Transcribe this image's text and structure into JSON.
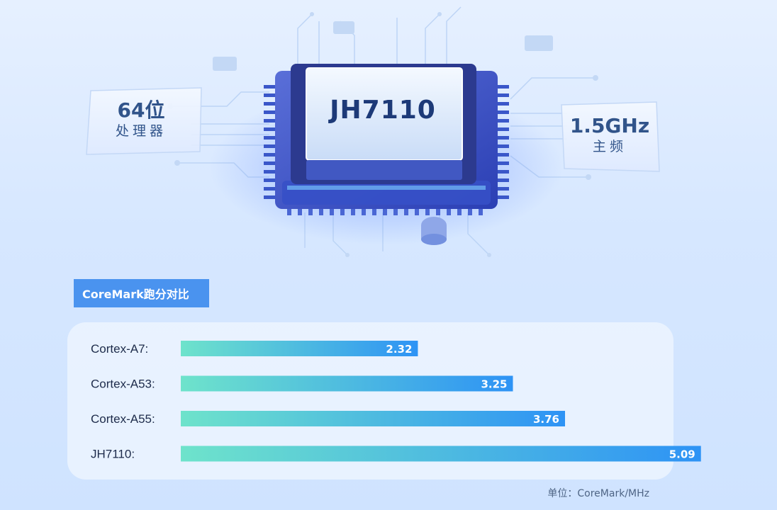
{
  "hero": {
    "chip_name": "JH7110",
    "left_spec": {
      "value": "64位",
      "label": "处理器"
    },
    "right_spec": {
      "value": "1.5GHz",
      "label": "主频"
    }
  },
  "section_title": "CoreMark跑分对比",
  "chart_data": {
    "type": "bar",
    "orientation": "horizontal",
    "categories": [
      "Cortex-A7:",
      "Cortex-A53:",
      "Cortex-A55:",
      "JH7110:"
    ],
    "values": [
      2.32,
      3.25,
      3.76,
      5.09
    ],
    "value_labels": [
      "2.32",
      "3.25",
      "3.76",
      "5.09"
    ],
    "xlim": [
      0,
      5.3
    ],
    "grid": false,
    "legend": "none",
    "bar_gradient": [
      "#6ee3cb",
      "#2e93f5"
    ]
  },
  "unit_note": "单位：CoreMark/MHz",
  "colors": {
    "accent": "#4a93ef",
    "chip_text": "#1d3a78"
  }
}
